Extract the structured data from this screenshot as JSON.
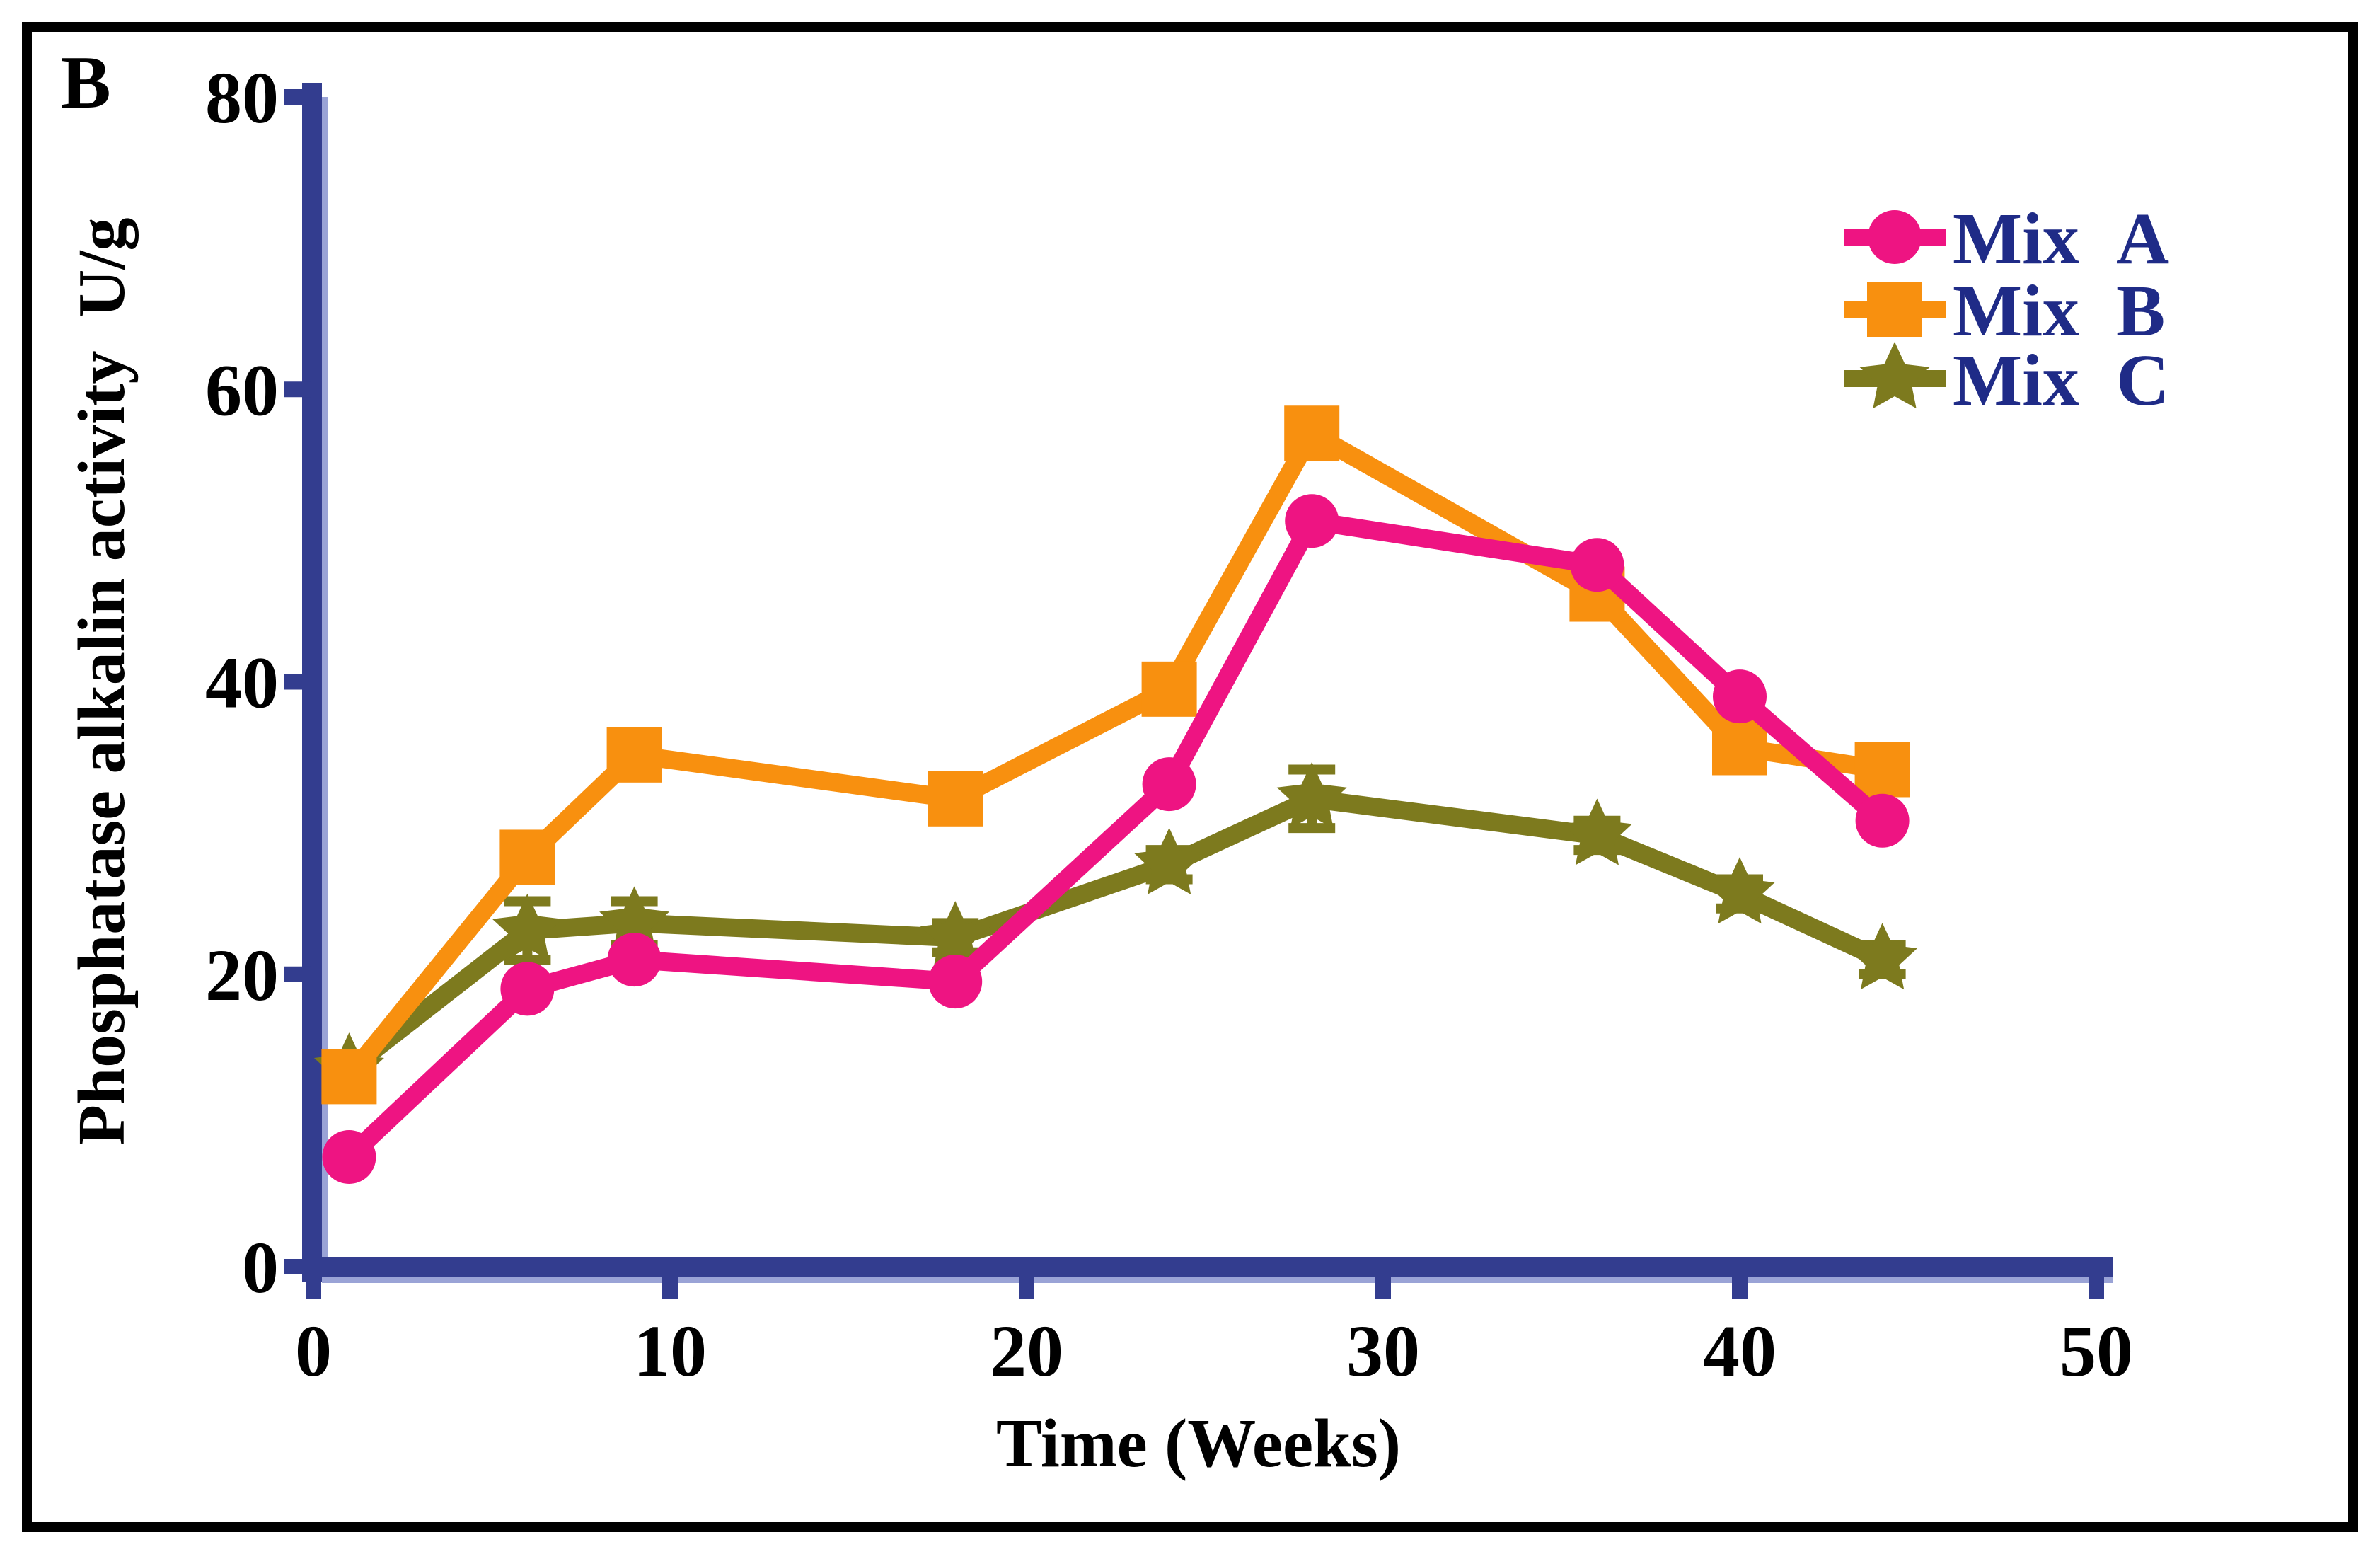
{
  "figure": {
    "panel_label": "B",
    "background": "#ffffff",
    "border_color": "#000000"
  },
  "chart_data": {
    "type": "line",
    "title": "",
    "xlabel": "Time (Weeks)",
    "ylabel": "Phosphatase alkalin activity  U/g",
    "xlim": [
      0,
      50
    ],
    "ylim": [
      0,
      80
    ],
    "x_ticks": [
      0,
      10,
      20,
      30,
      40,
      50
    ],
    "y_ticks": [
      0,
      20,
      40,
      60,
      80
    ],
    "grid": false,
    "legend_position": "upper right",
    "axis_color": "#333d8f",
    "axis_highlight_color": "#9aa3d6",
    "tick_label_color": "#000000",
    "legend_text_color": "#1f2b87",
    "x": [
      1,
      6,
      9,
      18,
      24,
      28,
      36,
      40,
      44
    ],
    "series": [
      {
        "name": "Mix  A",
        "marker": "circle",
        "color": "#ee1482",
        "values": [
          7.5,
          19,
          21,
          19.5,
          33,
          51,
          48,
          39,
          30.5
        ],
        "errors": [
          0,
          0,
          0,
          0,
          0,
          0,
          0,
          0,
          0
        ]
      },
      {
        "name": "Mix  B",
        "marker": "square",
        "color": "#f8900f",
        "values": [
          13,
          28,
          35,
          32,
          39.5,
          57,
          46,
          35.5,
          34
        ],
        "errors": [
          0,
          0,
          0,
          0,
          0,
          0,
          0,
          0,
          0
        ]
      },
      {
        "name": "Mix  C",
        "marker": "star",
        "color": "#7d7a1e",
        "values": [
          13.5,
          23,
          23.5,
          22.5,
          27.5,
          32,
          29.5,
          25.5,
          21
        ],
        "errors": [
          0,
          2,
          1.5,
          1,
          1,
          2,
          1,
          1,
          1
        ]
      }
    ]
  }
}
